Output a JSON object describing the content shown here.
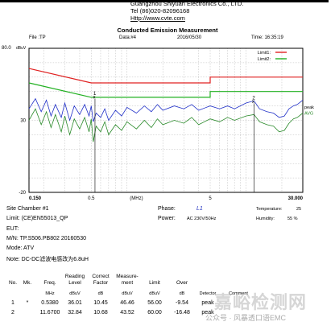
{
  "company": {
    "name": "Guangzhou Shiyuan Electronics Co., LTD.",
    "tel": "Tel (86)020-82096168",
    "url": "Http://www.cvte.com"
  },
  "report": {
    "title": "Conducted Emission Measurement",
    "file_label": "File :TP",
    "data_label": "Data:#4",
    "date": "2016/05/30",
    "time_label": "Time: 16:35:19"
  },
  "chart_data": {
    "type": "line",
    "x_scale": "log",
    "y_top_label": "80.0",
    "y_unit": "dBuV",
    "ylim": [
      -20,
      80
    ],
    "xlim": [
      0.15,
      30
    ],
    "xlabel": "(MHz)",
    "x_tick_labels": [
      {
        "value": 0.15,
        "label": "0.150"
      },
      {
        "value": 0.5,
        "label": "0.5"
      },
      {
        "value": 5,
        "label": "5"
      },
      {
        "value": 30,
        "label": "30.000"
      }
    ],
    "y_tick_labels": [
      {
        "value": 30,
        "label": "30"
      },
      {
        "value": -20,
        "label": "-20"
      }
    ],
    "grid": true,
    "legend": [
      {
        "name": "Limit1:",
        "color": "#e02020"
      },
      {
        "name": "Limit2:",
        "color": "#20b020"
      }
    ],
    "series_labels": [
      {
        "text": "peak",
        "y": 38
      },
      {
        "text": "AVG",
        "y": 34
      }
    ],
    "limit1": [
      [
        0.15,
        66
      ],
      [
        0.5,
        56
      ],
      [
        5,
        56
      ],
      [
        5,
        60
      ],
      [
        30,
        60
      ]
    ],
    "limit2": [
      [
        0.15,
        56
      ],
      [
        0.5,
        46
      ],
      [
        5,
        46
      ],
      [
        5,
        50
      ],
      [
        30,
        50
      ]
    ],
    "peak": [
      [
        0.15,
        38
      ],
      [
        0.17,
        45
      ],
      [
        0.19,
        36
      ],
      [
        0.21,
        44
      ],
      [
        0.23,
        33
      ],
      [
        0.25,
        41
      ],
      [
        0.28,
        32
      ],
      [
        0.3,
        42
      ],
      [
        0.33,
        30
      ],
      [
        0.36,
        40
      ],
      [
        0.4,
        34
      ],
      [
        0.44,
        41
      ],
      [
        0.48,
        33
      ],
      [
        0.5,
        40
      ],
      [
        0.52,
        29
      ],
      [
        0.55,
        35
      ],
      [
        0.6,
        32
      ],
      [
        0.65,
        38
      ],
      [
        0.7,
        30
      ],
      [
        0.8,
        37
      ],
      [
        0.9,
        33
      ],
      [
        1.0,
        39
      ],
      [
        1.2,
        35
      ],
      [
        1.4,
        40
      ],
      [
        1.6,
        36
      ],
      [
        1.8,
        41
      ],
      [
        2.0,
        37
      ],
      [
        2.5,
        40
      ],
      [
        3.0,
        38
      ],
      [
        3.5,
        41
      ],
      [
        4.0,
        37
      ],
      [
        5.0,
        40
      ],
      [
        6.0,
        38
      ],
      [
        7.0,
        40
      ],
      [
        8.0,
        38
      ],
      [
        10.0,
        42
      ],
      [
        11.67,
        43.5
      ],
      [
        13.0,
        38
      ],
      [
        15.0,
        36
      ],
      [
        17.0,
        35
      ],
      [
        19.0,
        32
      ],
      [
        21.0,
        33
      ],
      [
        23.0,
        38
      ],
      [
        25.0,
        40
      ],
      [
        27.0,
        41
      ],
      [
        30.0,
        44
      ]
    ],
    "avg": [
      [
        0.15,
        30
      ],
      [
        0.17,
        38
      ],
      [
        0.19,
        27
      ],
      [
        0.21,
        36
      ],
      [
        0.23,
        25
      ],
      [
        0.25,
        34
      ],
      [
        0.28,
        22
      ],
      [
        0.3,
        33
      ],
      [
        0.33,
        20
      ],
      [
        0.36,
        31
      ],
      [
        0.4,
        24
      ],
      [
        0.44,
        32
      ],
      [
        0.48,
        22
      ],
      [
        0.5,
        31
      ],
      [
        0.52,
        15
      ],
      [
        0.55,
        26
      ],
      [
        0.6,
        22
      ],
      [
        0.65,
        29
      ],
      [
        0.7,
        20
      ],
      [
        0.8,
        27
      ],
      [
        0.9,
        23
      ],
      [
        1.0,
        29
      ],
      [
        1.2,
        24
      ],
      [
        1.4,
        30
      ],
      [
        1.6,
        25
      ],
      [
        1.8,
        31
      ],
      [
        2.0,
        27
      ],
      [
        2.5,
        30
      ],
      [
        3.0,
        28
      ],
      [
        3.5,
        32
      ],
      [
        4.0,
        27
      ],
      [
        5.0,
        31
      ],
      [
        6.0,
        29
      ],
      [
        7.0,
        32
      ],
      [
        8.0,
        30
      ],
      [
        10.0,
        33
      ],
      [
        11.67,
        34
      ],
      [
        13.0,
        29
      ],
      [
        15.0,
        27
      ],
      [
        17.0,
        26
      ],
      [
        19.0,
        22
      ],
      [
        21.0,
        23
      ],
      [
        23.0,
        28
      ],
      [
        25.0,
        31
      ],
      [
        27.0,
        32
      ],
      [
        30.0,
        35
      ]
    ],
    "markers": [
      {
        "label": "1",
        "x": 0.538,
        "y": 46.46
      },
      {
        "label": "2",
        "x": 11.67,
        "y": 43.52
      }
    ]
  },
  "info": {
    "site": "Site  Chamber #1",
    "limit": "Limit:  (CE)EN55013_QP",
    "eut": "EUT:",
    "mn": "M/N:  TP.S506.PB802 20160530",
    "mode": "Mode:  ATV",
    "note": "Note:  DC-DC滤波电感改为6.8uH",
    "phase_label": "Phase:",
    "phase_value": "L1",
    "power_label": "Power:",
    "power_value": "AC 230V/50Hz",
    "temp_label": "Temperature:",
    "temp_value": "25",
    "hum_label": "Humidity:",
    "hum_value": "55 %"
  },
  "table": {
    "headers": [
      "No.",
      "Mk.",
      "Freq.",
      "Reading\nLevel",
      "Correct\nFactor",
      "Measure-\nment",
      "Limit",
      "Over",
      "",
      ""
    ],
    "units": [
      "",
      "",
      "MHz",
      "dBuV",
      "dB",
      "dBuV",
      "dBuV",
      "dB",
      "Detector",
      "Comment"
    ],
    "rows": [
      [
        "1",
        "*",
        "0.5380",
        "36.01",
        "10.45",
        "46.46",
        "56.00",
        "-9.54",
        "peak",
        ""
      ],
      [
        "2",
        "",
        "11.6700",
        "32.84",
        "10.68",
        "43.52",
        "60.00",
        "-16.48",
        "peak",
        ""
      ]
    ]
  },
  "watermark": {
    "big": "嘉峪检测网",
    "small": "公众号 · 风暴透口语EMC"
  }
}
